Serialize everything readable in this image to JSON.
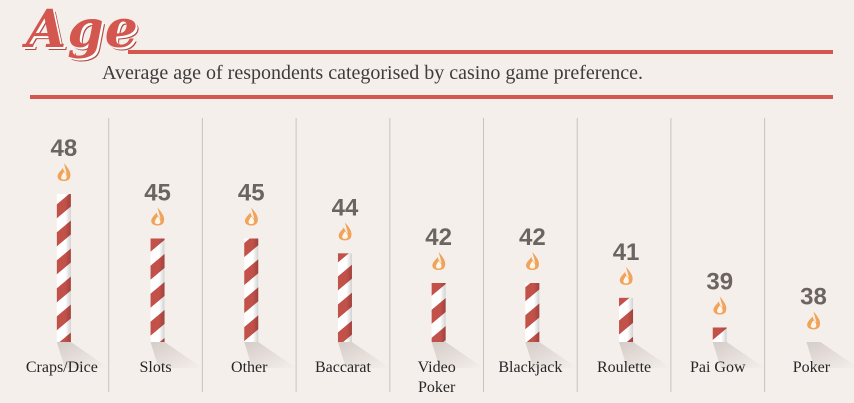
{
  "title": "Age",
  "subtitle": "Average age of respondents categorised by casino game preference.",
  "colors": {
    "accent": "#d4574f",
    "stripe": "#c2514a",
    "flame": "#f0a35a",
    "value_text": "#6b6461",
    "divider": "#c9c3bf",
    "background": "#f5efeb"
  },
  "chart_data": {
    "type": "bar",
    "title": "Age",
    "subtitle": "Average age of respondents categorised by casino game preference.",
    "categories": [
      "Craps/Dice",
      "Slots",
      "Other",
      "Baccarat",
      "Video Poker",
      "Blackjack",
      "Roulette",
      "Pai Gow",
      "Poker"
    ],
    "category_lines": [
      [
        "Craps/Dice"
      ],
      [
        "Slots"
      ],
      [
        "Other"
      ],
      [
        "Baccarat"
      ],
      [
        "Video",
        "Poker"
      ],
      [
        "Blackjack"
      ],
      [
        "Roulette"
      ],
      [
        "Pai Gow"
      ],
      [
        "Poker"
      ]
    ],
    "values": [
      48,
      45,
      45,
      44,
      42,
      42,
      41,
      39,
      38
    ],
    "mark_style": "striped candle with flame",
    "grid": false,
    "legend": "none"
  }
}
